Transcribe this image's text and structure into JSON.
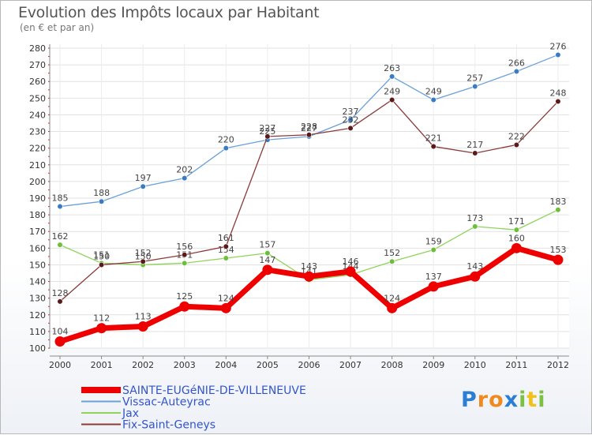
{
  "chart_data": {
    "type": "line",
    "title": "Evolution des Impôts locaux par Habitant",
    "subtitle": "(en € et par an)",
    "categories": [
      "2000",
      "2001",
      "2002",
      "2003",
      "2004",
      "2005",
      "2006",
      "2007",
      "2008",
      "2009",
      "2010",
      "2011",
      "2012"
    ],
    "ylim": [
      100,
      280
    ],
    "yticks": [
      100,
      110,
      120,
      130,
      140,
      150,
      160,
      170,
      180,
      190,
      200,
      210,
      220,
      230,
      240,
      250,
      260,
      270,
      280
    ],
    "series": [
      {
        "name": "Vissac-Auteyrac",
        "color": "#6aa0d8",
        "dot": "#3a7cc4",
        "width": 1.3,
        "values": [
          185,
          188,
          197,
          202,
          220,
          225,
          227,
          237,
          263,
          249,
          257,
          266,
          276
        ],
        "labels": [
          "185",
          "188",
          "197",
          "202",
          "220",
          "225",
          "227",
          "237",
          "263",
          "249",
          "257",
          "266",
          "276"
        ]
      },
      {
        "name": "Jax",
        "color": "#8fd45a",
        "dot": "#6cbf3a",
        "width": 1.3,
        "values": [
          162,
          151,
          150,
          151,
          154,
          157,
          141,
          144,
          152,
          159,
          173,
          171,
          183
        ],
        "labels": [
          "162",
          "151",
          "150",
          "151",
          "154",
          "157",
          "141",
          "144",
          "152",
          "159",
          "173",
          "171",
          "183"
        ]
      },
      {
        "name": "Fix-Saint-Geneys",
        "color": "#8b3a3a",
        "dot": "#5a1a1a",
        "width": 1.3,
        "values": [
          128,
          150,
          152,
          156,
          161,
          227,
          228,
          232,
          249,
          221,
          217,
          222,
          248
        ],
        "labels": [
          "128",
          "150",
          "152",
          "156",
          "161",
          "227",
          "228",
          "232",
          "249",
          "221",
          "217",
          "222",
          "248"
        ]
      },
      {
        "name": "SAINTE-EUGéNIE-DE-VILLENEUVE",
        "color": "#ee0000",
        "dot": "#ee0000",
        "width": 7,
        "values": [
          104,
          112,
          113,
          125,
          124,
          147,
          143,
          146,
          124,
          137,
          143,
          160,
          153
        ],
        "labels": [
          "104",
          "112",
          "113",
          "125",
          "124",
          "147",
          "143",
          "146",
          "124",
          "137",
          "143",
          "160",
          "153"
        ]
      }
    ],
    "legend": [
      {
        "name": "SAINTE-EUGéNIE-DE-VILLENEUVE",
        "color": "#ee0000",
        "thick": true
      },
      {
        "name": "Vissac-Auteyrac",
        "color": "#6aa0d8",
        "thick": false
      },
      {
        "name": "Jax",
        "color": "#8fd45a",
        "thick": false
      },
      {
        "name": "Fix-Saint-Geneys",
        "color": "#8b3a3a",
        "thick": false
      }
    ],
    "legend_text_color": "#3355cc",
    "grid": true
  },
  "logo": {
    "letters": [
      "P",
      "r",
      "o",
      "x",
      "i",
      "t",
      "i"
    ],
    "colors": [
      "#2a7fd4",
      "#f08a1c",
      "#f08a1c",
      "#2a7fd4",
      "#7cc242",
      "#f0c01c",
      "#7cc242"
    ]
  }
}
